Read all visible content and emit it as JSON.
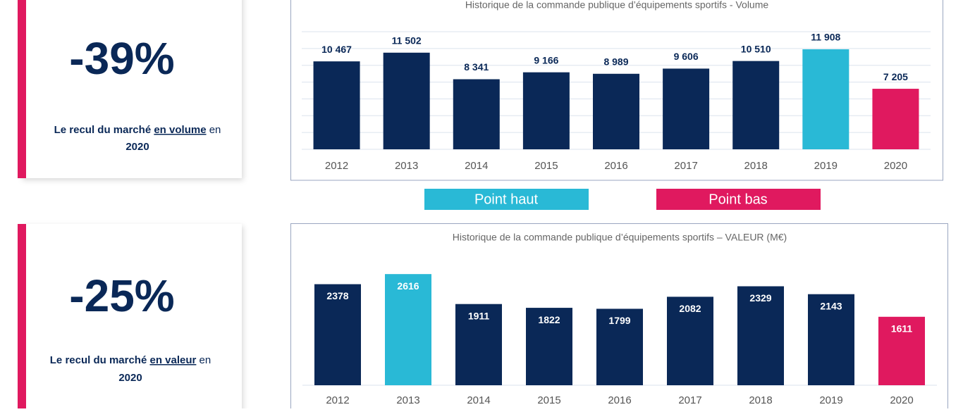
{
  "cards": [
    {
      "value": "-39%",
      "text": "Le recul du marché",
      "underlined": "en volume",
      "after": "en",
      "year": "2020"
    },
    {
      "value": "-25%",
      "text": "Le recul du marché",
      "underlined": "en valeur",
      "after": "en",
      "year": "2020"
    }
  ],
  "legend": [
    {
      "label": "Point haut",
      "color": "#29b9d6"
    },
    {
      "label": "Point bas",
      "color": "#e0195f"
    }
  ],
  "chart_data": [
    {
      "type": "bar",
      "title": "Historique de la commande publique d’équipements sportifs - Volume",
      "categories": [
        "2012",
        "2013",
        "2014",
        "2015",
        "2016",
        "2017",
        "2018",
        "2019",
        "2020"
      ],
      "values": [
        10467,
        11502,
        8341,
        9166,
        8989,
        9606,
        10510,
        11908,
        7205
      ],
      "value_labels": [
        "10 467",
        "11 502",
        "8 341",
        "9 166",
        "8 989",
        "9 606",
        "10 510",
        "11 908",
        "7 205"
      ],
      "colors": [
        "#0a2857",
        "#0a2857",
        "#0a2857",
        "#0a2857",
        "#0a2857",
        "#0a2857",
        "#0a2857",
        "#29b9d6",
        "#e0195f"
      ],
      "ylim": [
        0,
        14000
      ],
      "yticks": [
        0,
        2000,
        4000,
        6000,
        8000,
        10000,
        12000,
        14000
      ],
      "grid": true,
      "label_position": "above"
    },
    {
      "type": "bar",
      "title": "Historique de la commande publique d’équipements sportifs – VALEUR (M€)",
      "categories": [
        "2012",
        "2013",
        "2014",
        "2015",
        "2016",
        "2017",
        "2018",
        "2019",
        "2020"
      ],
      "values": [
        2378,
        2616,
        1911,
        1822,
        1799,
        2082,
        2329,
        2143,
        1611
      ],
      "colors": [
        "#0a2857",
        "#29b9d6",
        "#0a2857",
        "#0a2857",
        "#0a2857",
        "#0a2857",
        "#0a2857",
        "#0a2857",
        "#e0195f"
      ],
      "ylim": [
        0,
        3000
      ],
      "grid": false,
      "label_position": "inside"
    }
  ]
}
